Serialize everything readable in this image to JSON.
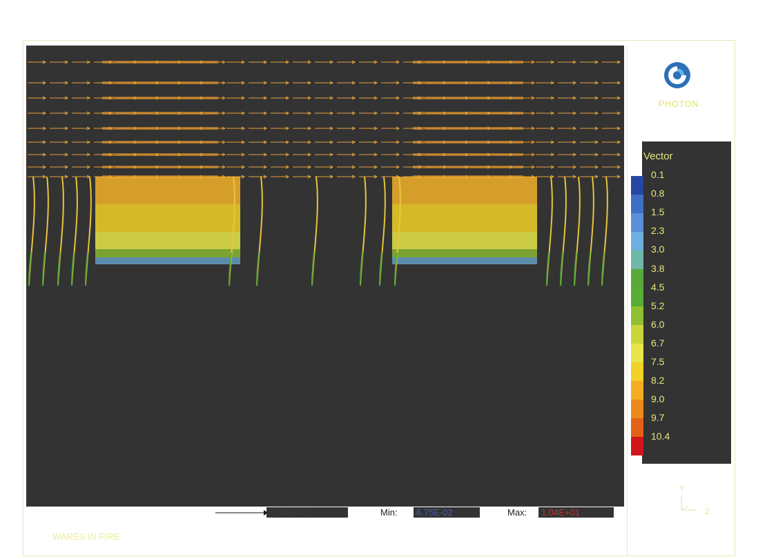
{
  "brand": {
    "name": "PHOTON"
  },
  "legend": {
    "title": "Vector",
    "ticks": [
      "0.1",
      "0.8",
      "1.5",
      "2.3",
      "3.0",
      "3.8",
      "4.5",
      "5.2",
      "6.0",
      "6.7",
      "7.5",
      "8.2",
      "9.0",
      "9.7",
      "10.4"
    ],
    "colors": [
      "#2546a3",
      "#3f6fc4",
      "#5a8fd8",
      "#6fb0e0",
      "#6fb7a8",
      "#5aa83a",
      "#58ad35",
      "#8fbf32",
      "#c8d63a",
      "#e8e64a",
      "#f2d226",
      "#f2ae22",
      "#ec8a1c",
      "#e36216",
      "#d0161b"
    ]
  },
  "axis_triad": {
    "y_label": "Y",
    "z_label": "Z"
  },
  "bottom": {
    "reference_value": "1.84E+01",
    "min_label": "Min:",
    "min_value": "6.75E-02",
    "max_label": "Max:",
    "max_value": "1.04E+01"
  },
  "caption": "WARES IN FIRE",
  "colors": {
    "plot_background": "#333333",
    "arrow_orange": "#f0a030",
    "arrow_yellow": "#f2e23a",
    "arrow_green": "#6fbf3a",
    "arrow_blue": "#5a8fd8"
  }
}
